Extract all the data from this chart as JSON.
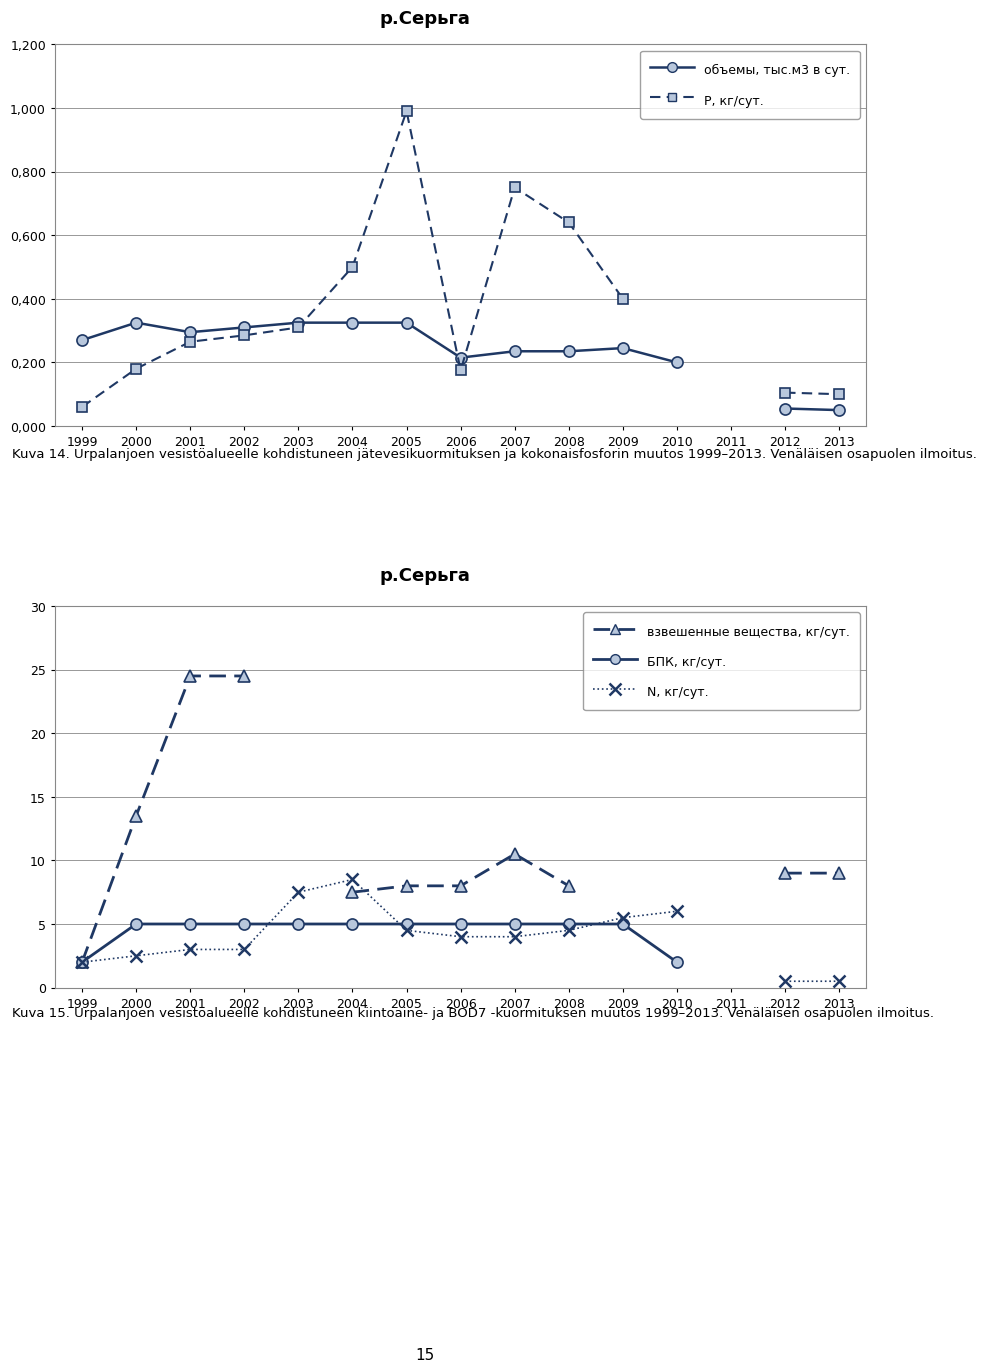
{
  "title1": "р.Серьга",
  "title2": "р.Серьга",
  "years": [
    1999,
    2000,
    2001,
    2002,
    2003,
    2004,
    2005,
    2006,
    2007,
    2008,
    2009,
    2010,
    2011,
    2012,
    2013
  ],
  "chart1": {
    "objem": [
      0.27,
      0.325,
      0.295,
      0.31,
      0.325,
      0.325,
      0.325,
      0.215,
      0.235,
      0.235,
      0.245,
      0.2,
      null,
      0.055,
      0.05
    ],
    "P": [
      0.06,
      0.18,
      0.265,
      0.285,
      0.31,
      0.5,
      0.99,
      0.175,
      0.75,
      0.64,
      0.4,
      null,
      null,
      0.105,
      0.1
    ],
    "ylim": [
      0.0,
      1.2
    ],
    "yticks": [
      0.0,
      0.2,
      0.4,
      0.6,
      0.8,
      1.0,
      1.2
    ],
    "ytick_labels": [
      "0,000",
      "0,200",
      "0,400",
      "0,600",
      "0,800",
      "1,000",
      "1,200"
    ],
    "legend1": "объемы, тыс.м3 в сут.",
    "legend2": "Р, кг/сут."
  },
  "chart2": {
    "vzv": [
      2.0,
      13.5,
      24.5,
      24.5,
      null,
      7.5,
      8.0,
      8.0,
      10.5,
      8.0,
      null,
      null,
      null,
      9.0,
      9.0
    ],
    "bpk": [
      2.0,
      5.0,
      5.0,
      5.0,
      5.0,
      5.0,
      5.0,
      5.0,
      5.0,
      5.0,
      5.0,
      2.0,
      null,
      null,
      null
    ],
    "N": [
      2.0,
      2.5,
      3.0,
      3.0,
      7.5,
      8.5,
      4.5,
      4.0,
      4.0,
      4.5,
      5.5,
      6.0,
      null,
      0.5,
      0.5
    ],
    "ylim": [
      0,
      30
    ],
    "yticks": [
      0,
      5,
      10,
      15,
      20,
      25,
      30
    ],
    "legend1": "взвешенные вещества, кг/сут.",
    "legend2": "БПК, кг/сут.",
    "legend3": "N, кг/сут."
  },
  "caption1": "Kuva 14. Urpalanjoen vesistöalueelle kohdistuneen jätevesikuormituksen ja kokonaisfosforin muutos 1999–2013. Venäläisen osapuolen ilmoitus.",
  "caption2": "Kuva 15. Urpalanjoen vesistöalueelle kohdistuneen kiintoaine- ja BOD7 -kuormituksen muutos 1999–2013. Venäläisen osapuolen ilmoitus.",
  "page_num": "15",
  "line_color": "#1F3864",
  "marker_face": "#B8C7DC",
  "bg_color": "#ffffff"
}
